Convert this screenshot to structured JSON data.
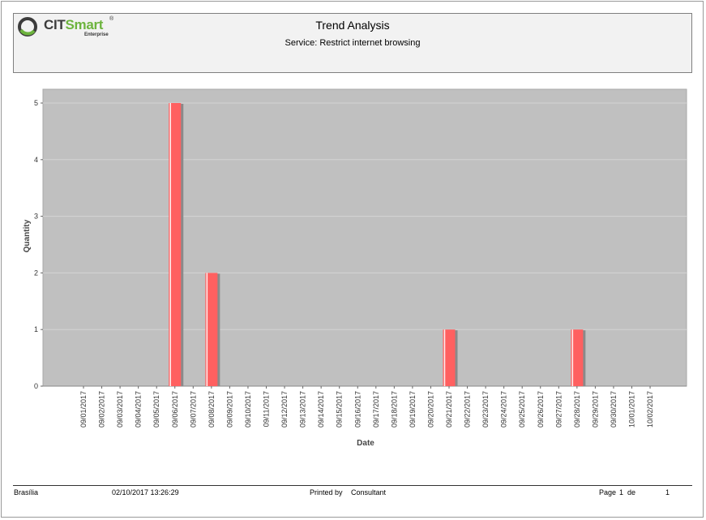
{
  "header": {
    "logo": {
      "brand_a": "CIT",
      "brand_b": "Smart",
      "reg": "®",
      "sub": "Enterprise"
    },
    "title": "Trend Analysis",
    "subtitle": "Service: Restrict internet browsing"
  },
  "chart_data": {
    "type": "bar",
    "xlabel": "Date",
    "ylabel": "Quantity",
    "ylim": [
      0,
      5
    ],
    "yticks": [
      0,
      1,
      2,
      3,
      4,
      5
    ],
    "grid": true,
    "legend": "none",
    "categories": [
      "09/01/2017",
      "09/02/2017",
      "09/03/2017",
      "09/04/2017",
      "09/05/2017",
      "09/06/2017",
      "09/07/2017",
      "09/08/2017",
      "09/09/2017",
      "09/10/2017",
      "09/11/2017",
      "09/12/2017",
      "09/13/2017",
      "09/14/2017",
      "09/15/2017",
      "09/16/2017",
      "09/17/2017",
      "09/18/2017",
      "09/19/2017",
      "09/20/2017",
      "09/21/2017",
      "09/22/2017",
      "09/23/2017",
      "09/24/2017",
      "09/25/2017",
      "09/26/2017",
      "09/27/2017",
      "09/28/2017",
      "09/29/2017",
      "09/30/2017",
      "10/01/2017",
      "10/02/2017"
    ],
    "values": [
      0,
      0,
      0,
      0,
      0,
      5,
      0,
      2,
      0,
      0,
      0,
      0,
      0,
      0,
      0,
      0,
      0,
      0,
      0,
      0,
      1,
      0,
      0,
      0,
      0,
      0,
      0,
      1,
      0,
      0,
      0,
      0
    ],
    "colors": {
      "plot_bg": "#c0c0c0",
      "bar": "#ff6060",
      "bar_shadow": "#8a8a8a"
    }
  },
  "footer": {
    "location": "Brasília",
    "datetime": "02/10/2017 13:26:29",
    "printed_by_label": "Printed by",
    "printed_by": "Consultant",
    "page_label": "Page",
    "page_num": "1",
    "of_label": "de",
    "page_total": "1"
  }
}
